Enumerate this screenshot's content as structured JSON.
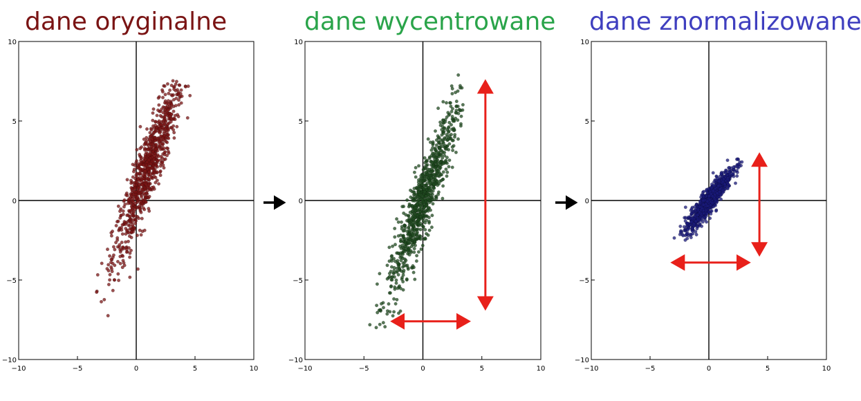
{
  "titles": [
    "dane oryginalne",
    "dane wycentrowane",
    "dane znormalizowane"
  ],
  "chart_data": [
    {
      "type": "scatter",
      "title": "dane oryginalne",
      "xlim": [
        -10,
        10
      ],
      "ylim": [
        -10,
        10
      ],
      "xticks": [
        "−10",
        "−5",
        "0",
        "5",
        "10"
      ],
      "yticks": [
        "10",
        "5",
        "0",
        "−5",
        "−10"
      ],
      "point_color": "#7a1414",
      "distribution": {
        "mean": [
          1.0,
          2.0
        ],
        "std": [
          1.5,
          3.0
        ],
        "correlation": 0.92,
        "n": 900
      },
      "extent": {
        "x": [
          -3.5,
          4.7
        ],
        "y": [
          -9.2,
          7.6
        ]
      }
    },
    {
      "type": "scatter",
      "title": "dane wycentrowane",
      "xlim": [
        -10,
        10
      ],
      "ylim": [
        -10,
        10
      ],
      "xticks": [
        "−10",
        "−5",
        "0",
        "5",
        "10"
      ],
      "yticks": [
        "10",
        "5",
        "0",
        "−5",
        "−10"
      ],
      "point_color": "#1f4a1f",
      "distribution": {
        "mean": [
          0,
          0
        ],
        "std": [
          1.5,
          3.0
        ],
        "correlation": 0.92,
        "n": 900
      },
      "extent": {
        "x": [
          -4.5,
          3.5
        ],
        "y": [
          -8.7,
          9.0
        ]
      },
      "annotations": [
        {
          "type": "double-arrow",
          "orientation": "vertical",
          "color": "#e8201a",
          "x": 5.3,
          "y": [
            -6.8,
            7.5
          ]
        },
        {
          "type": "double-arrow",
          "orientation": "horizontal",
          "color": "#e8201a",
          "y": -7.6,
          "x": [
            -2.6,
            3.9
          ]
        }
      ]
    },
    {
      "type": "scatter",
      "title": "dane znormalizowane",
      "xlim": [
        -10,
        10
      ],
      "ylim": [
        -10,
        10
      ],
      "xticks": [
        "−10",
        "−5",
        "0",
        "5",
        "10"
      ],
      "yticks": [
        "10",
        "5",
        "0",
        "−5",
        "−10"
      ],
      "point_color": "#1a1a7a",
      "distribution": {
        "mean": [
          0,
          0
        ],
        "std": [
          1.0,
          1.0
        ],
        "correlation": 0.92,
        "n": 900
      },
      "extent": {
        "x": [
          -3.3,
          3.0
        ],
        "y": [
          -3.0,
          3.4
        ]
      },
      "annotations": [
        {
          "type": "double-arrow",
          "orientation": "vertical",
          "color": "#e8201a",
          "x": 4.3,
          "y": [
            -3.4,
            2.9
          ]
        },
        {
          "type": "double-arrow",
          "orientation": "horizontal",
          "color": "#e8201a",
          "y": -3.9,
          "x": [
            -3.1,
            3.4
          ]
        }
      ]
    }
  ],
  "flow_arrows": [
    "right-arrow",
    "right-arrow"
  ]
}
